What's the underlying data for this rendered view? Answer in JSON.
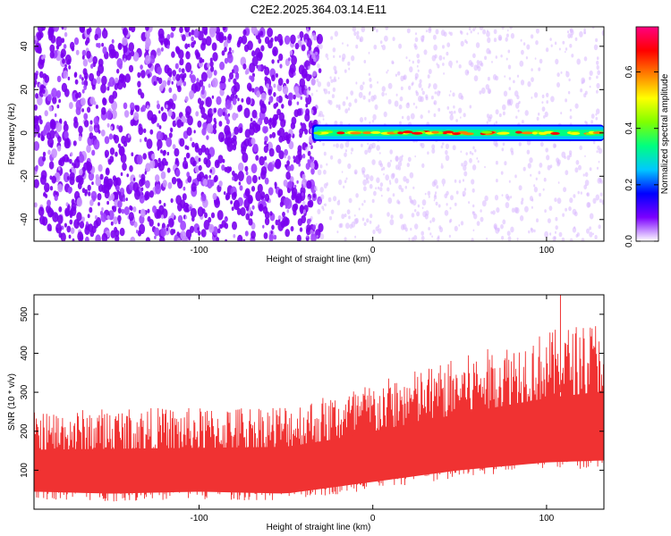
{
  "chart_data": [
    {
      "type": "heatmap",
      "title": "C2E2.2025.364.03.14.E11",
      "xlabel": "Height of straight line (km)",
      "ylabel": "Frequency (Hz)",
      "xlim": [
        -195,
        133
      ],
      "ylim": [
        -50,
        49
      ],
      "xticks": [
        -100,
        0,
        100
      ],
      "yticks": [
        -40,
        -20,
        0,
        20,
        40
      ],
      "xtick_labels": [
        "-100",
        "0",
        "100"
      ],
      "ytick_labels": [
        "-40",
        "-20",
        "0",
        "20",
        "40"
      ],
      "band": {
        "frequency_hz": 0,
        "x_start_km": -35,
        "x_end_km": 133,
        "half_width_hz": 3
      },
      "colorbar": {
        "label": "Normalized spectral amplitude",
        "range": [
          0.0,
          0.76
        ],
        "ticks": [
          0.0,
          0.2,
          0.4,
          0.6
        ],
        "tick_labels": [
          "0.0",
          "0.2",
          "0.4",
          "0.6"
        ],
        "colors": [
          "#ffffff",
          "#7b00ff",
          "#0000ff",
          "#00c8ff",
          "#00ff80",
          "#80ff00",
          "#ffff00",
          "#ff8000",
          "#ff0000",
          "#ff0080"
        ]
      }
    },
    {
      "type": "line",
      "xlabel": "Height of straight line (km)",
      "ylabel": "SNR (10 * v/v)",
      "xlim": [
        -195,
        133
      ],
      "ylim": [
        0,
        550
      ],
      "xticks": [
        -100,
        0,
        100
      ],
      "yticks": [
        100,
        200,
        300,
        400,
        500
      ],
      "xtick_labels": [
        "-100",
        "0",
        "100"
      ],
      "ytick_labels": [
        "100",
        "200",
        "300",
        "400",
        "500"
      ],
      "series": [
        {
          "name": "SNR",
          "color": "#f03232",
          "x": [
            -195,
            -150,
            -100,
            -50,
            -25,
            0,
            25,
            50,
            75,
            100,
            133
          ],
          "y_low": [
            25,
            20,
            25,
            20,
            35,
            50,
            65,
            80,
            90,
            100,
            105
          ],
          "y_high": [
            220,
            230,
            230,
            240,
            260,
            290,
            320,
            350,
            380,
            410,
            440
          ],
          "peak": 550
        }
      ]
    }
  ]
}
